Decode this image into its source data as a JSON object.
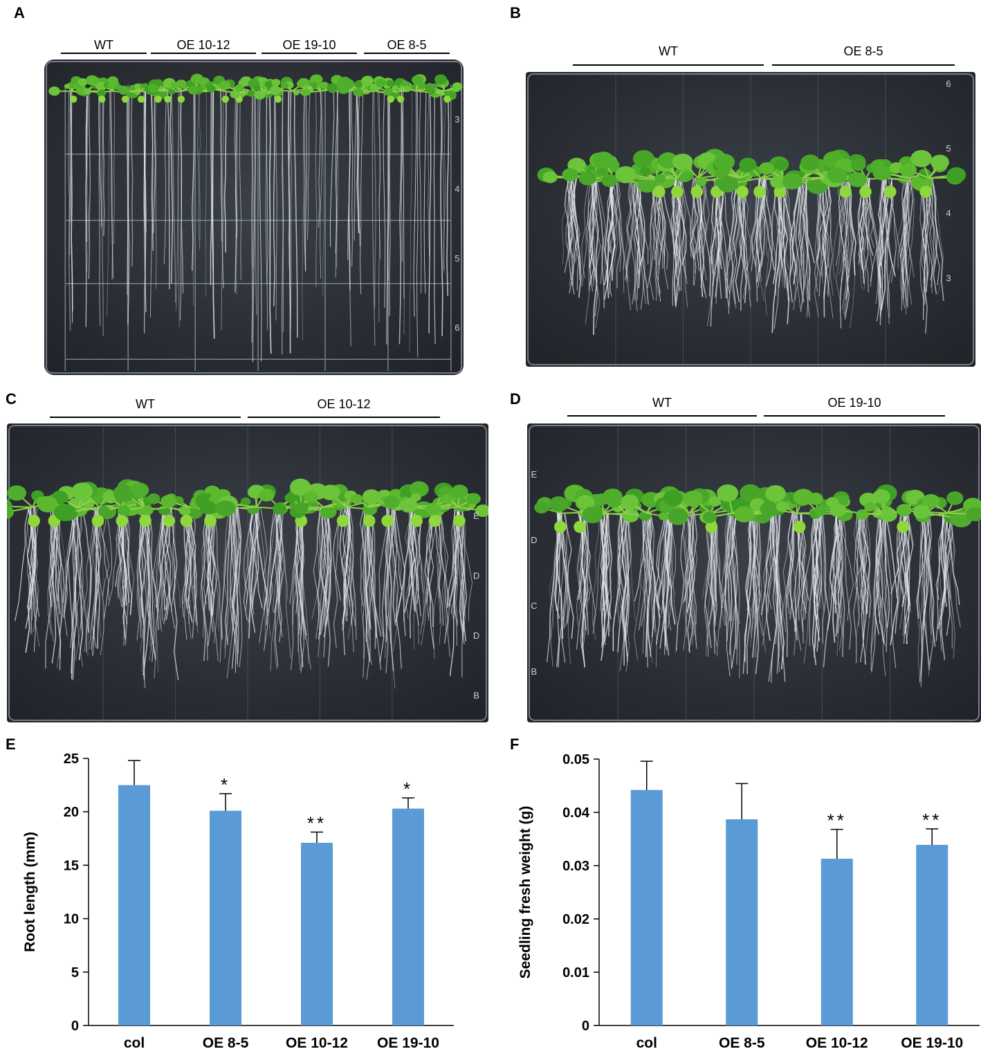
{
  "panels": {
    "A": {
      "letter": "A",
      "groups": [
        "WT",
        "OE 10-12",
        "OE 19-10",
        "OE 8-5"
      ],
      "ruler_marks": [
        "3",
        "4",
        "5",
        "6"
      ]
    },
    "B": {
      "letter": "B",
      "groups": [
        "WT",
        "OE 8-5"
      ],
      "ruler_marks": [
        "6",
        "5",
        "4",
        "3"
      ]
    },
    "C": {
      "letter": "C",
      "groups": [
        "WT",
        "OE 10-12"
      ],
      "ruler_marks": [
        "B",
        "D",
        "D",
        "E"
      ]
    },
    "D": {
      "letter": "D",
      "groups": [
        "WT",
        "OE 19-10"
      ],
      "ruler_marks": [
        "E",
        "D",
        "C",
        "B"
      ]
    },
    "E": {
      "letter": "E"
    },
    "F": {
      "letter": "F"
    }
  },
  "colors": {
    "bar": "#5b9bd5",
    "plant": "#5cb82e",
    "root": "#e8ecef",
    "plate": "#2c3037"
  },
  "chart_data": [
    {
      "type": "bar",
      "panel": "E",
      "categories": [
        "col",
        "OE 8-5",
        "OE 10-12",
        "OE 19-10"
      ],
      "values": [
        22.5,
        20.1,
        17.1,
        20.3
      ],
      "errors": [
        2.3,
        1.6,
        1.0,
        1.0
      ],
      "annotations": [
        "",
        "*",
        "**",
        "*"
      ],
      "ylabel": "Root length (mm)",
      "ylim": [
        0,
        25
      ],
      "yticks": [
        "0",
        "5",
        "10",
        "15",
        "20",
        "25"
      ],
      "ytick_values": [
        0,
        5,
        10,
        15,
        20,
        25
      ]
    },
    {
      "type": "bar",
      "panel": "F",
      "categories": [
        "col",
        "OE 8-5",
        "OE 10-12",
        "OE 19-10"
      ],
      "values": [
        0.0442,
        0.0387,
        0.0313,
        0.0339
      ],
      "errors": [
        0.0054,
        0.0067,
        0.0055,
        0.003
      ],
      "annotations": [
        "",
        "",
        "**",
        "**"
      ],
      "ylabel": "Seedling fresh weight (g)",
      "ylim": [
        0,
        0.05
      ],
      "yticks": [
        "0",
        "0.01",
        "0.02",
        "0.03",
        "0.04",
        "0.05"
      ],
      "ytick_values": [
        0,
        0.01,
        0.02,
        0.03,
        0.04,
        0.05
      ]
    }
  ]
}
